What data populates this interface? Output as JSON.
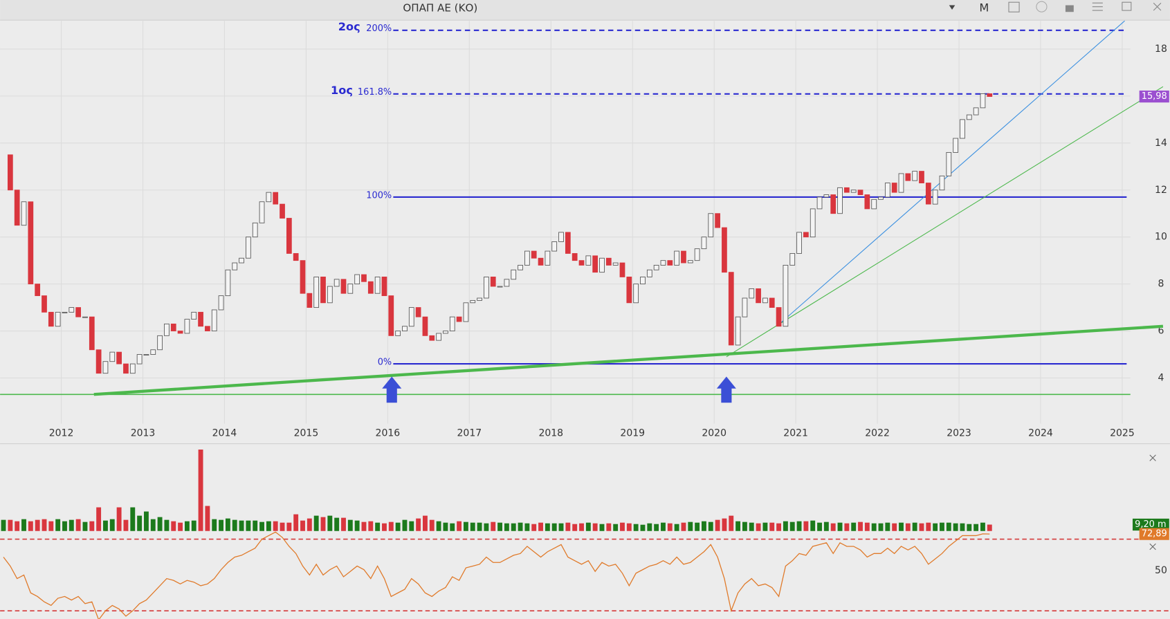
{
  "chart_data": {
    "type": "candlestick",
    "title": "ΟΠΑΠ ΑΕ (ΚΟ)",
    "period_button": "M",
    "closes": [
      13.5,
      12,
      10.5,
      11.5,
      8,
      7.5,
      6.8,
      6.2,
      6.8,
      6.8,
      7.0,
      6.6,
      6.6,
      5.2,
      4.2,
      4.7,
      5.1,
      4.6,
      4.2,
      4.6,
      5.0,
      5.0,
      5.2,
      5.8,
      6.3,
      6.0,
      5.9,
      6.5,
      6.8,
      6.2,
      6.0,
      6.9,
      7.5,
      8.6,
      8.9,
      9.1,
      10.0,
      10.6,
      11.5,
      11.9,
      11.4,
      10.8,
      9.3,
      9.0,
      7.6,
      7.0,
      8.3,
      7.2,
      7.9,
      8.2,
      7.6,
      8.0,
      8.4,
      8.1,
      7.6,
      8.3,
      7.5,
      5.8,
      6.0,
      6.2,
      7.0,
      6.6,
      5.8,
      5.6,
      5.9,
      6.0,
      6.6,
      6.4,
      7.2,
      7.3,
      7.4,
      8.3,
      7.9,
      7.9,
      8.2,
      8.6,
      8.8,
      9.4,
      9.1,
      8.8,
      9.4,
      9.8,
      10.2,
      9.3,
      9.0,
      8.8,
      9.2,
      8.5,
      9.1,
      8.8,
      8.9,
      8.3,
      7.2,
      8.0,
      8.3,
      8.6,
      8.8,
      9.0,
      8.8,
      9.4,
      8.9,
      9.0,
      9.5,
      10.0,
      11.0,
      10.4,
      8.5,
      5.4,
      6.6,
      7.4,
      7.8,
      7.2,
      7.4,
      7.0,
      6.2,
      8.8,
      9.3,
      10.2,
      10.0,
      11.2,
      11.7,
      11.8,
      11.0,
      12.1,
      11.9,
      12.0,
      11.8,
      11.2,
      11.6,
      11.7,
      12.3,
      11.9,
      12.7,
      12.4,
      12.8,
      12.3,
      11.4,
      12.0,
      12.6,
      13.6,
      14.2,
      15.0,
      15.2,
      15.5,
      16.1,
      15.98
    ],
    "color_up": "#f4f4f4",
    "color_down": "#d9363e",
    "xlim": [
      2011.25,
      2025.1
    ],
    "xticks": [
      2012,
      2013,
      2014,
      2015,
      2016,
      2017,
      2018,
      2019,
      2020,
      2021,
      2022,
      2023,
      2024,
      2025
    ],
    "ylim": [
      1.2,
      19.2
    ],
    "yticks": [
      4,
      6,
      8,
      10,
      12,
      14,
      16,
      18
    ],
    "grid": true,
    "last_price": {
      "value": 15.98,
      "label": "15,98"
    },
    "fib_levels": [
      {
        "label": "200%",
        "value": 18.8,
        "tag": "2ος",
        "dashed": true
      },
      {
        "label": "161.8%",
        "value": 16.09,
        "tag": "1ος",
        "dashed": true
      },
      {
        "label": "100%",
        "value": 11.7,
        "dashed": false
      },
      {
        "label": "0%",
        "value": 4.6,
        "dashed": false
      }
    ],
    "trendlines": [
      {
        "color": "#4cb84c",
        "width": 4,
        "x": [
          2012.4,
          2025.5
        ],
        "y": [
          3.3,
          6.2
        ]
      },
      {
        "color": "#4cb84c",
        "width": 1.5,
        "x": [
          2011.25,
          2025.1
        ],
        "y": [
          3.3,
          3.3
        ]
      },
      {
        "color": "#4cb84c",
        "width": 1,
        "x": [
          2020.15,
          2020.8,
          2025.5
        ],
        "y": [
          4.9,
          6.3,
          16.4
        ]
      },
      {
        "color": "#3a8fe0",
        "width": 1,
        "x": [
          2020.8,
          2025.03
        ],
        "y": [
          6.3,
          19.2
        ]
      }
    ],
    "arrows": [
      2016.05,
      2020.15
    ],
    "volume": {
      "values": [
        16,
        16,
        14,
        17,
        14,
        16,
        17,
        14,
        17,
        14,
        16,
        17,
        13,
        14,
        34,
        15,
        17,
        34,
        16,
        34,
        22,
        28,
        17,
        20,
        16,
        14,
        12,
        14,
        15,
        117,
        36,
        17,
        16,
        18,
        16,
        15,
        15,
        15,
        13,
        14,
        14,
        12,
        12,
        24,
        15,
        18,
        22,
        20,
        22,
        19,
        19,
        16,
        15,
        13,
        14,
        12,
        11,
        13,
        12,
        16,
        14,
        18,
        22,
        16,
        14,
        12,
        11,
        14,
        13,
        12,
        12,
        11,
        13,
        12,
        11,
        11,
        12,
        11,
        10,
        12,
        11,
        11,
        11,
        12,
        10,
        11,
        12,
        11,
        10,
        11,
        10,
        12,
        11,
        10,
        9,
        11,
        10,
        12,
        11,
        10,
        12,
        13,
        12,
        14,
        13,
        16,
        18,
        22,
        14,
        13,
        12,
        11,
        12,
        12,
        11,
        14,
        13,
        14,
        14,
        15,
        12,
        13,
        11,
        12,
        11,
        12,
        13,
        12,
        11,
        11,
        12,
        11,
        12,
        11,
        12,
        11,
        12,
        11,
        12,
        12,
        11,
        11,
        10,
        10,
        12,
        9.2
      ],
      "ylim": [
        0,
        120
      ],
      "color_up": "#1c7a1c",
      "color_down": "#d9363e",
      "last": {
        "value": 9.2,
        "label": "9,20 m"
      }
    },
    "rsi": {
      "values": [
        60,
        55,
        48,
        50,
        40,
        38,
        35,
        33,
        37,
        38,
        36,
        38,
        34,
        35,
        25,
        30,
        33,
        31,
        27,
        30,
        34,
        36,
        40,
        44,
        48,
        47,
        45,
        47,
        46,
        44,
        45,
        48,
        53,
        57,
        60,
        61,
        63,
        65,
        70,
        72,
        74,
        71,
        66,
        62,
        55,
        50,
        56,
        50,
        53,
        55,
        49,
        52,
        55,
        53,
        48,
        55,
        48,
        38,
        40,
        42,
        48,
        45,
        40,
        38,
        41,
        43,
        49,
        47,
        54,
        55,
        56,
        60,
        57,
        57,
        59,
        61,
        62,
        66,
        63,
        60,
        63,
        65,
        67,
        60,
        58,
        56,
        58,
        52,
        57,
        55,
        56,
        51,
        44,
        51,
        53,
        55,
        56,
        58,
        56,
        60,
        56,
        57,
        60,
        63,
        67,
        60,
        48,
        30,
        40,
        45,
        48,
        44,
        45,
        43,
        38,
        55,
        58,
        62,
        61,
        66,
        67,
        68,
        62,
        68,
        66,
        66,
        64,
        60,
        62,
        62,
        65,
        62,
        66,
        64,
        66,
        62,
        56,
        59,
        62,
        66,
        69,
        72,
        72,
        72,
        73,
        72.89
      ],
      "ylim": [
        25,
        75
      ],
      "levels": [
        70,
        30
      ],
      "yticks": [
        50
      ],
      "color": "#e07a2a",
      "last": {
        "value": 72.89,
        "label": "72,89"
      }
    }
  }
}
